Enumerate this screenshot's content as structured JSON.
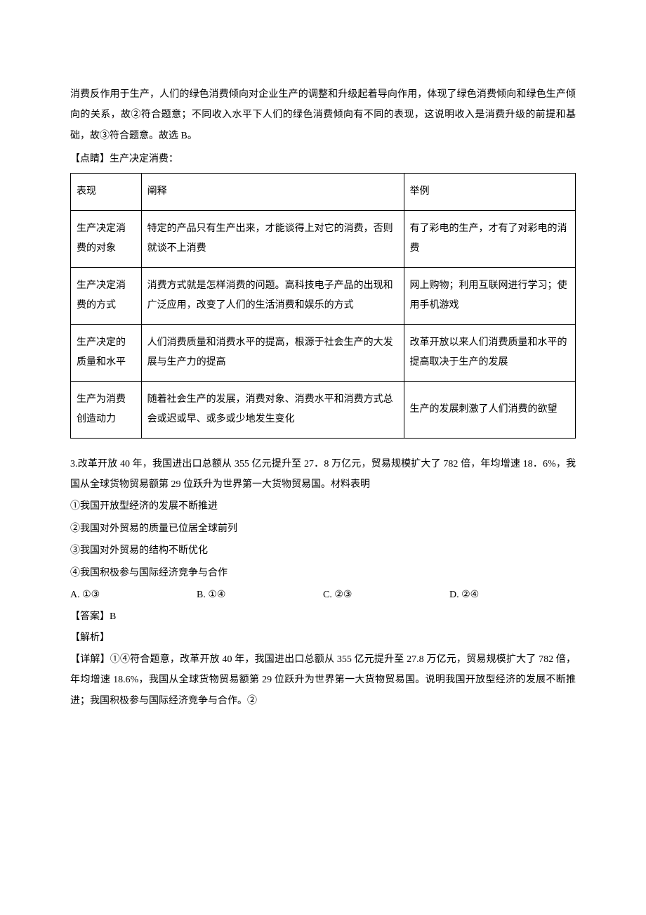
{
  "intro": {
    "p1": "消费反作用于生产，人们的绿色消费倾向对企业生产的调整和升级起着导向作用，体现了绿色消费倾向和绿色生产倾向的关系，故②符合题意；不同收入水平下人们的绿色消费倾向有不同的表现，这说明收入是消费升级的前提和基础，故③符合题意。故选 B。",
    "p2": "【点睛】生产决定消费："
  },
  "table": {
    "columns": [
      "表现",
      "阐释",
      "举例"
    ],
    "rows": [
      {
        "c1": "生产决定消费的对象",
        "c2": "特定的产品只有生产出来，才能谈得上对它的消费，否则就谈不上消费",
        "c3": "有了彩电的生产，才有了对彩电的消费"
      },
      {
        "c1": "生产决定消费的方式",
        "c2": "消费方式就是怎样消费的问题。高科技电子产品的出现和广泛应用，改变了人们的生活消费和娱乐的方式",
        "c3": "网上购物；利用互联网进行学习；使用手机游戏"
      },
      {
        "c1": "生产决定的质量和水平",
        "c2": "人们消费质量和消费水平的提高，根源于社会生产的大发展与生产力的提高",
        "c3": "改革开放以来人们消费质量和水平的提高取决于生产的发展"
      },
      {
        "c1": "生产为消费创造动力",
        "c2": "随着社会生产的发展，消费对象、消费水平和消费方式总会或迟或早、或多或少地发生变化",
        "c3": "生产的发展刺激了人们消费的欲望"
      }
    ]
  },
  "q3": {
    "stem1": "3.改革开放 40 年，我国进出口总额从 355 亿元提升至 27．8 万亿元，贸易规模扩大了 782 倍，年均增速 18．6%，我国从全球货物贸易额第 29 位跃升为世界第一大货物贸易国。材料表明",
    "opt1": "①我国开放型经济的发展不断推进",
    "opt2": "②我国对外贸易的质量已位居全球前列",
    "opt3": "③我国对外贸易的结构不断优化",
    "opt4": "④我国积极参与国际经济竞争与合作",
    "choices": {
      "A": "A. ①③",
      "B": "B. ①④",
      "C": "C. ②③",
      "D": "D. ②④"
    },
    "answer": "【答案】B",
    "jiexi": "【解析】",
    "detail": "【详解】①④符合题意，改革开放 40 年，我国进出口总额从 355 亿元提升至 27.8 万亿元，贸易规模扩大了 782 倍，年均增速 18.6%，我国从全球货物贸易额第 29 位跃升为世界第一大货物贸易国。说明我国开放型经济的发展不断推进；我国积极参与国际经济竞争与合作。②"
  }
}
